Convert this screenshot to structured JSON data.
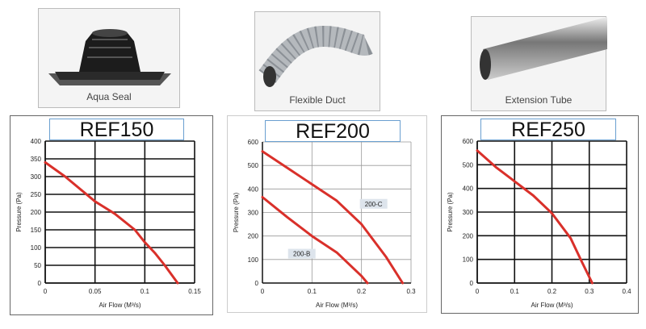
{
  "products": [
    {
      "caption": "Aqua Seal",
      "icon": "roof-flashing-seal"
    },
    {
      "caption": "Flexible Duct",
      "icon": "flexible-duct"
    },
    {
      "caption": "Extension Tube",
      "icon": "extension-tube"
    }
  ],
  "colors": {
    "curve": "#d9302a",
    "grid": "#222",
    "label_bg": "#dde4ec"
  },
  "chart_data": [
    {
      "type": "line",
      "title": "REF150",
      "xlabel": "Air Flow (M³/s)",
      "ylabel": "Pressure (Pa)",
      "xlim": [
        0,
        0.15
      ],
      "ylim": [
        0,
        400
      ],
      "xticks": [
        "0",
        "0.05",
        "0.1",
        "0.15"
      ],
      "yticks": [
        "0",
        "50",
        "100",
        "150",
        "200",
        "250",
        "300",
        "350",
        "400"
      ],
      "grid": true,
      "series": [
        {
          "name": "REF150",
          "label": "",
          "x": [
            0,
            0.02,
            0.05,
            0.07,
            0.09,
            0.1,
            0.11,
            0.12,
            0.133
          ],
          "y": [
            340,
            300,
            230,
            195,
            150,
            115,
            85,
            50,
            0
          ]
        }
      ]
    },
    {
      "type": "line",
      "title": "REF200",
      "xlabel": "Air Flow (M³/s)",
      "ylabel": "Pressure (Pa)",
      "xlim": [
        0,
        0.3
      ],
      "ylim": [
        0,
        600
      ],
      "xticks": [
        "0",
        "0.1",
        "0.2",
        "0.3"
      ],
      "yticks": [
        "0",
        "100",
        "200",
        "300",
        "400",
        "500",
        "600"
      ],
      "grid": true,
      "series": [
        {
          "name": "200-C",
          "label": "200-C",
          "x": [
            0,
            0.05,
            0.1,
            0.15,
            0.2,
            0.25,
            0.283
          ],
          "y": [
            560,
            490,
            420,
            350,
            250,
            110,
            0
          ]
        },
        {
          "name": "200-B",
          "label": "200-B",
          "x": [
            0,
            0.05,
            0.1,
            0.15,
            0.2,
            0.212
          ],
          "y": [
            365,
            280,
            200,
            130,
            30,
            0
          ]
        }
      ]
    },
    {
      "type": "line",
      "title": "REF250",
      "xlabel": "Air Flow (M³/s)",
      "ylabel": "Pressure (Pa)",
      "xlim": [
        0,
        0.4
      ],
      "ylim": [
        0,
        600
      ],
      "xticks": [
        "0",
        "0.1",
        "0.2",
        "0.3",
        "0.4"
      ],
      "yticks": [
        "0",
        "100",
        "200",
        "300",
        "400",
        "500",
        "600"
      ],
      "grid": true,
      "series": [
        {
          "name": "REF250",
          "label": "",
          "x": [
            0,
            0.05,
            0.1,
            0.15,
            0.2,
            0.25,
            0.28,
            0.308
          ],
          "y": [
            560,
            490,
            430,
            370,
            295,
            190,
            90,
            0
          ]
        }
      ]
    }
  ]
}
